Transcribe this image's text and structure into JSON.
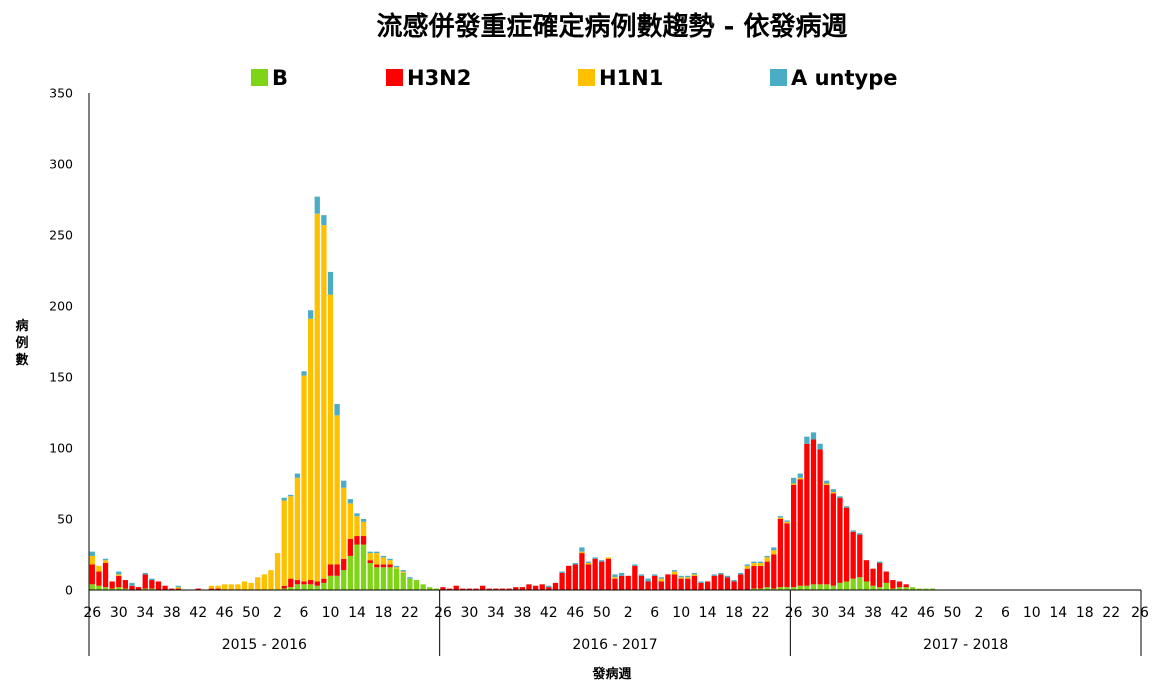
{
  "chart_data": {
    "type": "bar",
    "stacked": true,
    "title": "流感併發重症確定病例數趨勢 - 依發病週",
    "xlabel": "發病週",
    "ylabel": "病例數",
    "ylim": [
      0,
      350
    ],
    "yticks": [
      0,
      50,
      100,
      150,
      200,
      250,
      300,
      350
    ],
    "legend_position": "top",
    "season_groups": [
      "2015 - 2016",
      "2016 - 2017",
      "2017 - 2018"
    ],
    "week_tick_labels": [
      "26",
      "30",
      "34",
      "38",
      "42",
      "46",
      "50",
      "2",
      "6",
      "10",
      "14",
      "18",
      "22"
    ],
    "weeks_per_season": 53,
    "series": [
      {
        "name": "B",
        "color": "#80d418",
        "values": [
          4,
          3,
          2,
          1,
          2,
          1,
          0,
          0,
          1,
          1,
          0,
          0,
          0,
          0,
          0,
          0,
          0,
          0,
          0,
          0,
          0,
          0,
          0,
          0,
          0,
          0,
          0,
          0,
          0,
          1,
          2,
          4,
          4,
          4,
          3,
          5,
          10,
          10,
          14,
          24,
          32,
          32,
          19,
          16,
          16,
          16,
          15,
          12,
          8,
          7,
          4,
          2,
          1,
          0,
          0,
          0,
          0,
          0,
          0,
          0,
          0,
          0,
          0,
          0,
          0,
          0,
          0,
          0,
          0,
          0,
          0,
          0,
          0,
          0,
          0,
          0,
          0,
          0,
          0,
          0,
          0,
          0,
          0,
          0,
          0,
          0,
          0,
          0,
          0,
          0,
          0,
          0,
          0,
          0,
          0,
          0,
          0,
          0,
          0,
          0,
          1,
          1,
          2,
          1,
          2,
          2,
          2,
          3,
          3,
          4,
          4,
          4,
          3,
          5,
          6,
          8,
          9,
          6,
          3,
          2,
          5,
          1,
          2,
          2,
          2,
          1,
          1,
          1,
          0,
          0,
          0,
          0,
          0,
          0,
          0,
          0,
          0,
          0,
          0,
          0,
          0,
          0,
          0,
          0,
          0,
          0,
          0,
          0,
          0,
          0,
          0,
          0,
          0,
          0,
          0,
          0,
          0,
          0,
          0,
          0,
          0,
          0,
          0
        ]
      },
      {
        "name": "H3N2",
        "color": "#ff0000",
        "values": [
          14,
          10,
          17,
          5,
          8,
          6,
          3,
          2,
          10,
          6,
          6,
          3,
          1,
          1,
          0,
          0,
          1,
          0,
          1,
          1,
          0,
          0,
          0,
          0,
          0,
          0,
          0,
          0,
          0,
          2,
          6,
          3,
          2,
          3,
          3,
          3,
          8,
          8,
          8,
          12,
          6,
          6,
          2,
          2,
          2,
          2,
          0,
          0,
          0,
          0,
          0,
          0,
          0,
          2,
          1,
          3,
          1,
          1,
          1,
          3,
          1,
          1,
          1,
          1,
          2,
          2,
          4,
          3,
          4,
          2,
          5,
          12,
          17,
          18,
          26,
          18,
          22,
          20,
          22,
          8,
          10,
          10,
          17,
          10,
          6,
          10,
          6,
          11,
          11,
          8,
          8,
          10,
          5,
          6,
          10,
          11,
          9,
          6,
          11,
          15,
          16,
          16,
          18,
          24,
          48,
          45,
          72,
          75,
          100,
          102,
          95,
          70,
          65,
          60,
          52,
          33,
          30,
          15,
          12,
          17,
          8,
          6,
          4,
          2,
          0,
          0,
          0,
          0,
          0,
          0,
          0,
          0,
          0,
          0,
          0,
          0,
          0,
          0,
          0,
          0,
          0,
          0,
          0,
          0,
          0,
          0,
          0,
          0,
          0,
          0,
          0,
          0,
          0,
          0,
          0,
          0,
          0
        ]
      },
      {
        "name": "H1N1",
        "color": "#ffc000",
        "values": [
          6,
          4,
          2,
          0,
          1,
          0,
          0,
          0,
          0,
          0,
          0,
          0,
          0,
          1,
          0,
          0,
          0,
          0,
          2,
          2,
          4,
          4,
          4,
          6,
          5,
          9,
          11,
          14,
          26,
          60,
          58,
          72,
          145,
          184,
          259,
          249,
          190,
          105,
          50,
          25,
          14,
          10,
          5,
          8,
          5,
          3,
          1,
          1,
          0,
          0,
          0,
          0,
          0,
          0,
          0,
          0,
          0,
          0,
          0,
          0,
          0,
          0,
          0,
          0,
          0,
          0,
          0,
          0,
          0,
          0,
          0,
          0,
          0,
          0,
          1,
          1,
          0,
          0,
          1,
          1,
          0,
          0,
          0,
          0,
          0,
          0,
          2,
          0,
          2,
          1,
          1,
          1,
          0,
          0,
          0,
          0,
          0,
          0,
          0,
          2,
          2,
          2,
          3,
          3,
          1,
          1,
          1,
          1,
          0,
          0,
          0,
          1,
          1,
          0,
          0,
          0,
          0,
          0,
          0,
          0,
          0,
          0,
          0,
          0,
          0,
          0,
          0,
          0,
          0,
          0,
          0,
          0,
          0,
          0,
          0,
          0,
          0,
          0,
          0,
          0,
          0,
          0,
          0,
          0,
          0,
          0,
          0,
          0,
          0,
          0,
          0,
          0,
          0,
          0,
          0,
          0,
          0
        ]
      },
      {
        "name": "A untype",
        "color": "#4bacc6",
        "values": [
          3,
          0,
          1,
          0,
          2,
          0,
          2,
          0,
          1,
          1,
          0,
          0,
          0,
          1,
          0,
          0,
          0,
          0,
          0,
          0,
          0,
          0,
          0,
          0,
          0,
          0,
          0,
          0,
          0,
          2,
          1,
          3,
          3,
          6,
          12,
          7,
          16,
          8,
          5,
          3,
          2,
          2,
          1,
          1,
          1,
          1,
          1,
          1,
          1,
          0,
          0,
          0,
          0,
          0,
          0,
          0,
          0,
          0,
          0,
          0,
          0,
          0,
          0,
          0,
          0,
          0,
          0,
          0,
          0,
          1,
          0,
          1,
          0,
          1,
          3,
          1,
          1,
          1,
          0,
          2,
          2,
          0,
          1,
          1,
          2,
          1,
          1,
          0,
          1,
          1,
          1,
          1,
          1,
          0,
          1,
          1,
          1,
          1,
          1,
          1,
          1,
          1,
          1,
          2,
          1,
          1,
          4,
          3,
          5,
          5,
          4,
          2,
          2,
          1,
          1,
          1,
          1,
          0,
          0,
          1,
          0,
          0,
          0,
          0,
          0,
          0,
          0,
          0,
          0,
          0,
          0,
          0,
          0,
          0,
          0,
          0,
          0,
          0,
          0,
          0,
          0,
          0,
          0,
          0,
          0,
          0,
          0,
          0,
          0,
          0,
          0,
          0,
          0,
          0,
          0,
          0,
          0
        ]
      }
    ]
  }
}
